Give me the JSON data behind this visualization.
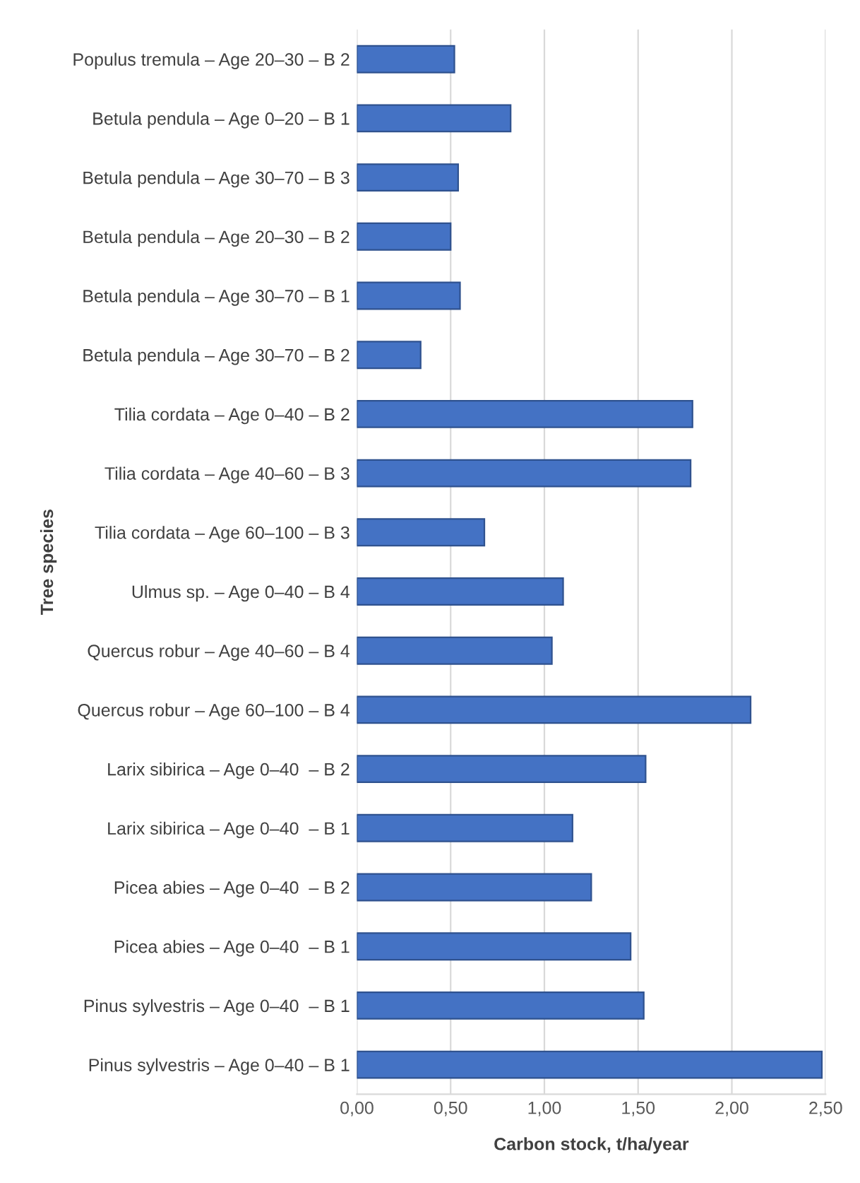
{
  "chart_data": {
    "type": "bar",
    "orientation": "horizontal",
    "xlabel": "Carbon stock, t/ha/year",
    "ylabel": "Tree species",
    "categories": [
      "Populus tremula – Age 20–30 – B 2",
      "Betula pendula – Age 0–20 – B 1",
      "Betula pendula – Age 30–70 – B 3",
      "Betula pendula – Age 20–30 – B 2",
      "Betula pendula – Age 30–70 – B 1",
      "Betula pendula – Age 30–70 – B 2",
      "Tilia cordata – Age 0–40 – B 2",
      "Tilia cordata – Age 40–60 – B 3",
      "Tilia cordata – Age 60–100 – B 3",
      "Ulmus sp. – Age 0–40 – B 4",
      "Quercus robur – Age 40–60 – B 4",
      "Quercus robur – Age 60–100 – B 4",
      "Larix sibirica – Age 0–40  – B 2",
      "Larix sibirica – Age 0–40  – B 1",
      "Picea abies – Age 0–40  – B 2",
      "Picea abies – Age 0–40  – B 1",
      "Pinus sylvestris – Age 0–40  – B 1",
      "Pinus sylvestris – Age 0–40 – B 1"
    ],
    "values": [
      0.52,
      0.82,
      0.54,
      0.5,
      0.55,
      0.34,
      1.79,
      1.78,
      0.68,
      1.1,
      1.04,
      2.1,
      1.54,
      1.15,
      1.25,
      1.46,
      1.53,
      2.48
    ],
    "color": "#4472c4",
    "xlim": [
      0,
      2.5
    ],
    "xticks": [
      {
        "value": 0,
        "label": "0,00"
      },
      {
        "value": 0.5,
        "label": "0,50"
      },
      {
        "value": 1,
        "label": "1,00"
      },
      {
        "value": 1.5,
        "label": "1,50"
      },
      {
        "value": 2,
        "label": "2,00"
      },
      {
        "value": 2.5,
        "label": "2,50"
      }
    ],
    "grid": "x"
  }
}
